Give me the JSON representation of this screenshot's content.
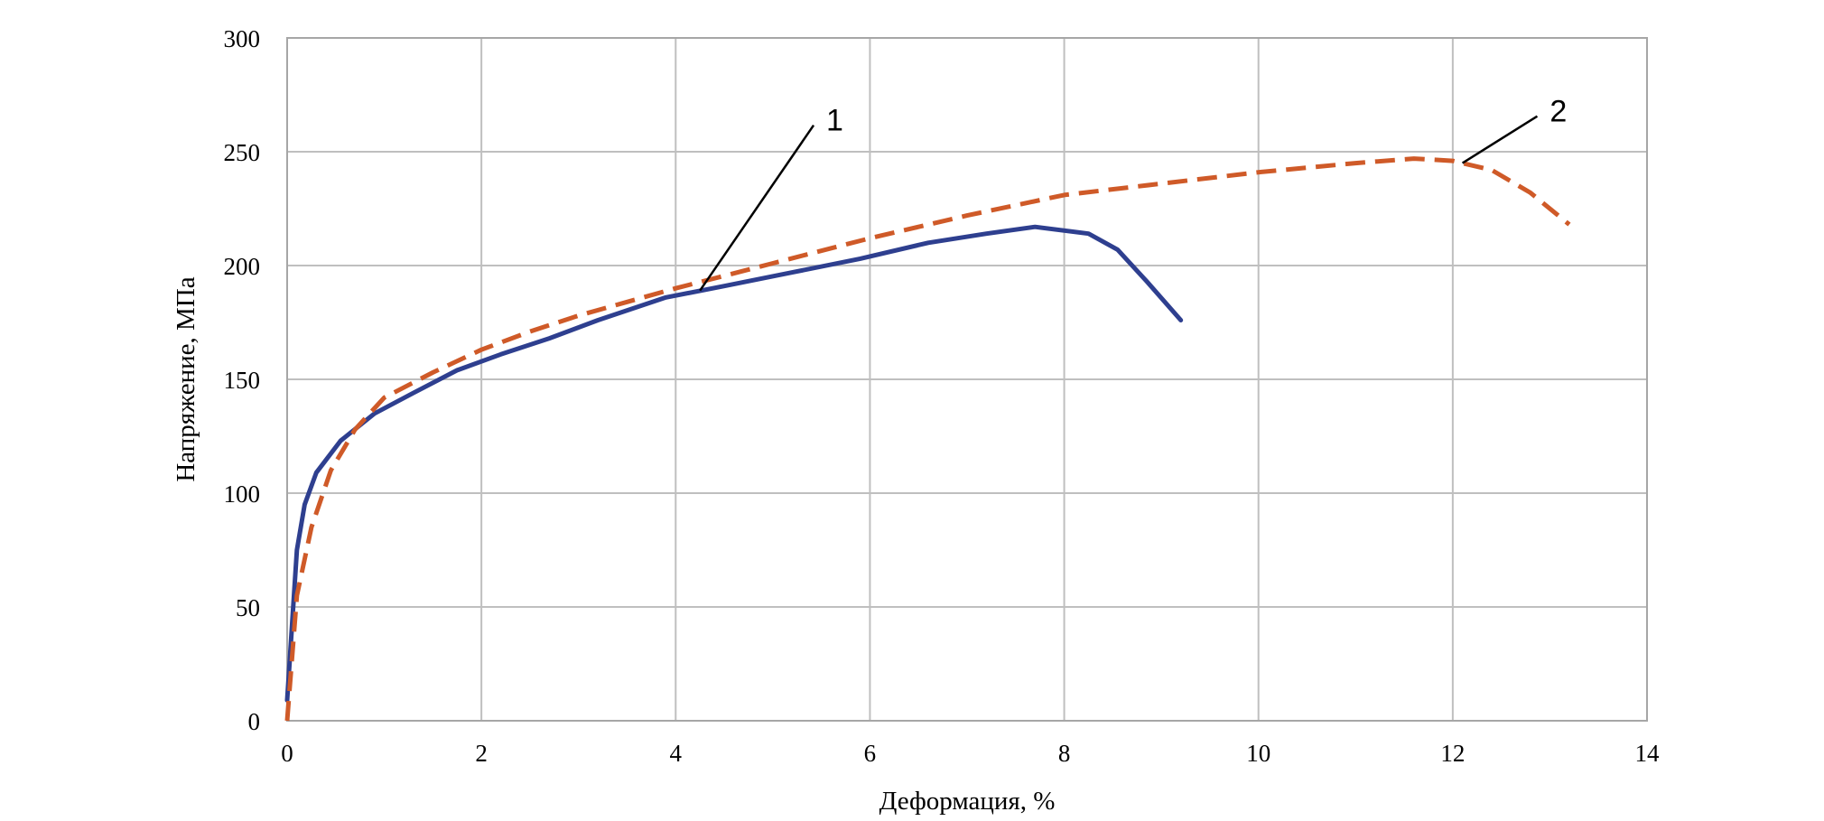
{
  "chart_data": {
    "type": "line",
    "xlabel": "Деформация, %",
    "ylabel": "Напряжение, МПа",
    "xlim": [
      0,
      14
    ],
    "ylim": [
      0,
      300
    ],
    "xticks": [
      0,
      2,
      4,
      6,
      8,
      10,
      12,
      14
    ],
    "yticks": [
      0,
      50,
      100,
      150,
      200,
      250,
      300
    ],
    "grid": true,
    "legend": "none",
    "series": [
      {
        "name": "1",
        "color": "#2e3f8f",
        "style": "solid",
        "x": [
          0,
          0.1,
          0.18,
          0.3,
          0.55,
          0.9,
          1.3,
          1.75,
          2.2,
          2.7,
          3.2,
          3.9,
          4.5,
          5.2,
          5.9,
          6.6,
          7.2,
          7.7,
          8.25,
          8.55,
          8.85,
          9.2
        ],
        "y": [
          9,
          75,
          95,
          109,
          123,
          135,
          144,
          154,
          161,
          168,
          176,
          186,
          191,
          197,
          203,
          210,
          214,
          217,
          214,
          207,
          193,
          176
        ]
      },
      {
        "name": "2",
        "color": "#cf5a28",
        "style": "dashed",
        "x": [
          0,
          0.1,
          0.25,
          0.45,
          0.7,
          1.0,
          1.5,
          2.0,
          2.5,
          3.0,
          3.5,
          4.0,
          5.0,
          6.0,
          7.0,
          8.0,
          9.0,
          10.0,
          11.0,
          11.6,
          12.0,
          12.4,
          12.8,
          13.2
        ],
        "y": [
          0,
          55,
          85,
          110,
          128,
          142,
          153,
          163,
          171,
          178,
          184,
          190,
          201,
          212,
          222,
          231,
          236,
          241,
          245,
          247,
          246,
          242,
          232,
          218
        ]
      }
    ],
    "annotations": [
      {
        "label": "1",
        "series": "1",
        "text_x": 5.55,
        "text_y": 264,
        "point_x": 4.25,
        "point_y": 189
      },
      {
        "label": "2",
        "series": "2",
        "text_x": 13.0,
        "text_y": 268,
        "point_x": 12.1,
        "point_y": 245
      }
    ]
  }
}
